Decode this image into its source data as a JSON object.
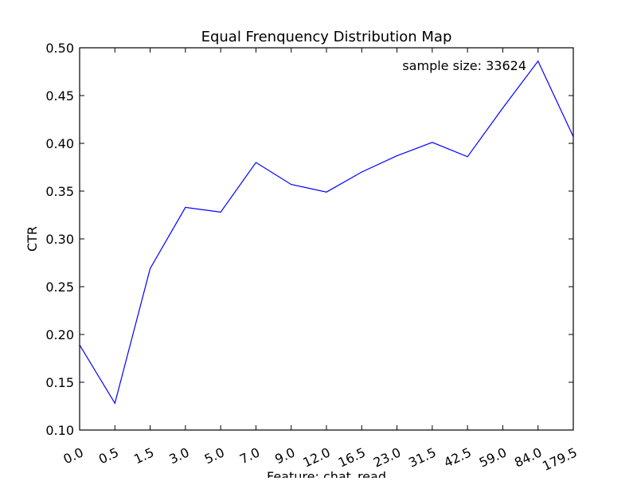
{
  "chart_data": {
    "type": "line",
    "title": "Equal Frenquency Distribution Map",
    "xlabel": "Feature: chat_read",
    "ylabel": "CTR",
    "annotation": "sample size: 33624",
    "categories": [
      "0.0",
      "0.5",
      "1.5",
      "3.0",
      "5.0",
      "7.0",
      "9.0",
      "12.0",
      "16.5",
      "23.0",
      "31.5",
      "42.5",
      "59.0",
      "84.0",
      "179.5"
    ],
    "series": [
      {
        "color": "#0000ff",
        "values": [
          0.189,
          0.128,
          0.269,
          0.333,
          0.328,
          0.38,
          0.357,
          0.349,
          0.37,
          0.387,
          0.401,
          0.386,
          0.437,
          0.486,
          0.407
        ]
      }
    ],
    "yticks": [
      "0.10",
      "0.15",
      "0.20",
      "0.25",
      "0.30",
      "0.35",
      "0.40",
      "0.45",
      "0.50"
    ],
    "ylim": [
      0.1,
      0.5
    ],
    "grid": false
  }
}
